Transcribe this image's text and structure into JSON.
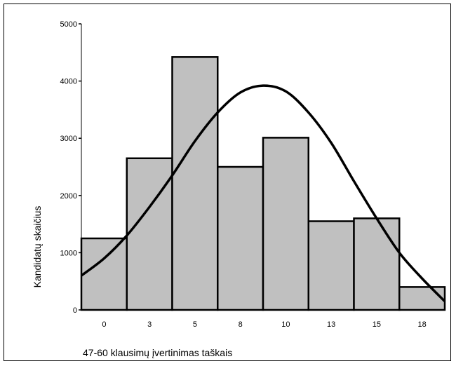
{
  "chart_data": {
    "type": "bar",
    "categories": [
      "0",
      "3",
      "5",
      "8",
      "10",
      "13",
      "15",
      "18"
    ],
    "values": [
      1250,
      2650,
      4420,
      2500,
      3010,
      1550,
      1600,
      400
    ],
    "xlabel": "47-60 klausimų įvertinimas taškais",
    "ylabel": "Kandidatų skaičius",
    "ylim": [
      0,
      5000
    ],
    "yticks": [
      0,
      1000,
      2000,
      3000,
      4000,
      5000
    ],
    "grid": false,
    "legend": "none",
    "bar_color": "#c0c0c0",
    "edge_color": "#000000",
    "normal_curve": {
      "x": [
        0,
        0.5,
        1,
        1.5,
        2,
        2.5,
        3,
        3.5,
        4,
        4.5,
        5,
        5.5,
        6,
        6.5,
        7,
        7.5,
        8
      ],
      "y": [
        600,
        900,
        1300,
        1800,
        2350,
        2950,
        3450,
        3800,
        3920,
        3820,
        3450,
        2920,
        2250,
        1600,
        1000,
        550,
        150
      ]
    }
  }
}
